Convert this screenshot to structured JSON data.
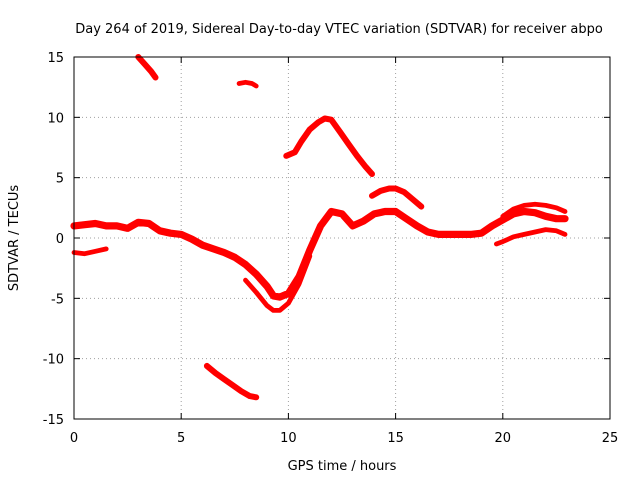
{
  "chart_data": {
    "type": "scatter",
    "title": "Day 264 of 2019, Sidereal Day-to-day VTEC variation (SDTVAR) for receiver abpo",
    "xlabel": "GPS time / hours",
    "ylabel": "SDTVAR / TECUs",
    "xlim": [
      0,
      25
    ],
    "ylim": [
      -15,
      15
    ],
    "xticks": [
      0,
      5,
      10,
      15,
      20,
      25
    ],
    "yticks": [
      -15,
      -10,
      -5,
      0,
      5,
      10,
      15
    ],
    "xtick_labels": [
      "0",
      "5",
      "10",
      "15",
      "20",
      "25"
    ],
    "ytick_labels": [
      "-15",
      "-10",
      "-5",
      "0",
      "5",
      "10",
      "15"
    ],
    "grid": true,
    "legend": "none",
    "color": "#ff0000",
    "series": [
      {
        "name": "main-band-upper",
        "thickness": 0.6,
        "x": [
          0,
          0.5,
          1,
          1.5,
          2,
          2.5,
          3,
          3.5,
          4,
          4.5,
          5,
          5.5,
          6,
          6.5,
          7,
          7.5,
          8,
          8.5,
          9,
          9.3,
          9.6,
          10,
          10.5,
          11,
          11.5,
          12,
          12.5,
          13,
          13.5,
          14,
          14.5,
          15,
          15.5,
          16,
          16.5,
          17,
          17.5,
          18,
          18.5,
          19,
          19.5,
          20,
          20.5,
          21,
          21.5,
          22,
          22.5,
          22.9
        ],
        "y": [
          1.0,
          1.1,
          1.2,
          1.0,
          1.0,
          0.8,
          1.3,
          1.2,
          0.6,
          0.4,
          0.3,
          -0.1,
          -0.6,
          -0.9,
          -1.2,
          -1.6,
          -2.2,
          -3.0,
          -4.0,
          -4.8,
          -4.9,
          -4.6,
          -3.2,
          -1.0,
          1.0,
          2.2,
          2.0,
          1.0,
          1.4,
          2.0,
          2.2,
          2.2,
          1.6,
          1.0,
          0.5,
          0.3,
          0.3,
          0.3,
          0.3,
          0.4,
          1.0,
          1.5,
          2.0,
          2.2,
          2.1,
          1.8,
          1.6,
          1.6
        ]
      },
      {
        "name": "main-band-lower",
        "thickness": 0.4,
        "x": [
          8,
          8.5,
          9,
          9.3,
          9.6,
          10,
          10.5,
          11
        ],
        "y": [
          -3.5,
          -4.5,
          -5.6,
          -6.0,
          -6.0,
          -5.4,
          -3.8,
          -1.5
        ]
      },
      {
        "name": "left-low-segment",
        "thickness": 0.4,
        "x": [
          0,
          0.5,
          1,
          1.5
        ],
        "y": [
          -1.2,
          -1.3,
          -1.1,
          -0.9
        ]
      },
      {
        "name": "top-left-segment",
        "thickness": 0.5,
        "x": [
          3.0,
          3.3,
          3.6,
          3.8
        ],
        "y": [
          15.0,
          14.4,
          13.8,
          13.3
        ]
      },
      {
        "name": "top-mid-segment",
        "thickness": 0.4,
        "x": [
          7.7,
          8.0,
          8.3,
          8.5
        ],
        "y": [
          12.8,
          12.9,
          12.8,
          12.6
        ]
      },
      {
        "name": "upper-arc",
        "thickness": 0.5,
        "x": [
          9.9,
          10.3,
          10.6,
          11.0,
          11.4,
          11.7,
          12.0,
          12.4,
          12.8,
          13.2,
          13.6,
          13.9
        ],
        "y": [
          6.8,
          7.1,
          8.0,
          9.0,
          9.6,
          9.9,
          9.8,
          8.8,
          7.8,
          6.8,
          5.9,
          5.3
        ]
      },
      {
        "name": "right-mid-arc",
        "thickness": 0.5,
        "x": [
          13.9,
          14.3,
          14.7,
          15.0,
          15.4,
          15.8,
          16.2
        ],
        "y": [
          3.5,
          3.9,
          4.1,
          4.1,
          3.8,
          3.2,
          2.6
        ]
      },
      {
        "name": "bottom-left-segment",
        "thickness": 0.5,
        "x": [
          6.2,
          6.6,
          7.0,
          7.4,
          7.8,
          8.2,
          8.5
        ],
        "y": [
          -10.6,
          -11.2,
          -11.7,
          -12.2,
          -12.7,
          -13.1,
          -13.2
        ]
      },
      {
        "name": "right-low-segment",
        "thickness": 0.4,
        "x": [
          19.7,
          20.0,
          20.5,
          21.0,
          21.5,
          22.0,
          22.5,
          22.9
        ],
        "y": [
          -0.5,
          -0.3,
          0.1,
          0.3,
          0.5,
          0.7,
          0.6,
          0.3
        ]
      },
      {
        "name": "right-high-segment",
        "thickness": 0.4,
        "x": [
          20.0,
          20.5,
          21.0,
          21.5,
          22.0,
          22.5,
          22.9
        ],
        "y": [
          1.8,
          2.4,
          2.7,
          2.8,
          2.7,
          2.5,
          2.2
        ]
      }
    ]
  }
}
